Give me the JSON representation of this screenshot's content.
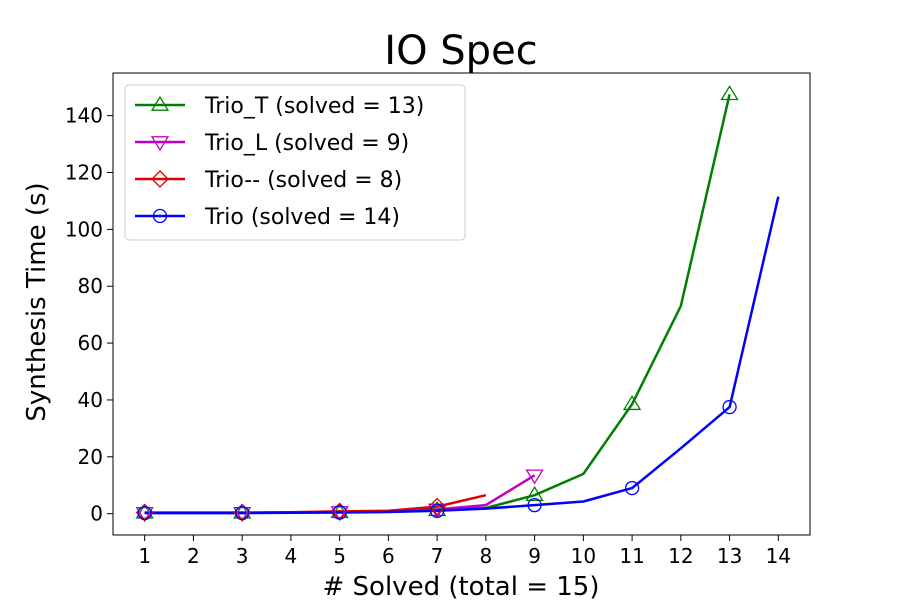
{
  "chart_data": {
    "type": "line",
    "title": "IO Spec",
    "xlabel": "# Solved (total = 15)",
    "ylabel": "Synthesis Time (s)",
    "xlim": [
      0.35,
      14.65
    ],
    "ylim": [
      -7.5,
      155
    ],
    "xticks": [
      1,
      2,
      3,
      4,
      5,
      6,
      7,
      8,
      9,
      10,
      11,
      12,
      13,
      14
    ],
    "yticks": [
      0,
      20,
      40,
      60,
      80,
      100,
      120,
      140
    ],
    "grid": false,
    "legend_position": "top-left",
    "marker_every": 2,
    "series": [
      {
        "name": "Trio_T (solved = 13)",
        "color": "#008000",
        "marker": "triangle-up",
        "x": [
          1,
          2,
          3,
          4,
          5,
          6,
          7,
          8,
          9,
          10,
          11,
          12,
          13
        ],
        "y": [
          0.3,
          0.3,
          0.3,
          0.4,
          0.5,
          0.7,
          1.2,
          2.0,
          6.5,
          14.0,
          38.5,
          73.0,
          147.5
        ]
      },
      {
        "name": "Trio_L (solved = 9)",
        "color": "#bf00bf",
        "marker": "triangle-down",
        "x": [
          1,
          2,
          3,
          4,
          5,
          6,
          7,
          8,
          9
        ],
        "y": [
          0.3,
          0.3,
          0.3,
          0.4,
          0.6,
          0.9,
          1.5,
          3.0,
          13.5
        ]
      },
      {
        "name": "Trio-- (solved = 8)",
        "color": "#e00000",
        "marker": "diamond",
        "x": [
          1,
          2,
          3,
          4,
          5,
          6,
          7,
          8
        ],
        "y": [
          0.4,
          0.4,
          0.4,
          0.5,
          0.8,
          1.0,
          2.5,
          6.5
        ]
      },
      {
        "name": "Trio (solved = 14)",
        "color": "#0000ff",
        "marker": "circle",
        "x": [
          1,
          2,
          3,
          4,
          5,
          6,
          7,
          8,
          9,
          10,
          11,
          12,
          13,
          14
        ],
        "y": [
          0.2,
          0.2,
          0.2,
          0.3,
          0.4,
          0.6,
          1.0,
          1.8,
          3.0,
          4.3,
          9.0,
          23.0,
          37.5,
          111.5
        ]
      }
    ]
  }
}
